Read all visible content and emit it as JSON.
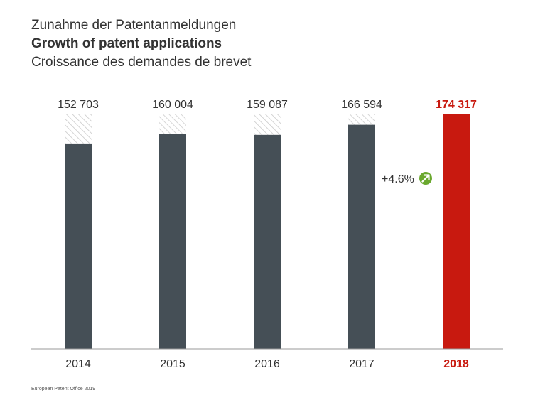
{
  "titles": {
    "de": "Zunahme der Patentanmeldungen",
    "en": "Growth of patent applications",
    "fr": "Croissance des demandes de brevet"
  },
  "source": "European Patent Office 2019",
  "colors": {
    "bar": "#454f56",
    "highlight": "#c8190f",
    "hatch": "#c8c8c8",
    "axis": "#999999",
    "arrow_badge": "#6aa82e"
  },
  "icons": {
    "growth": "arrow-up-right-icon"
  },
  "chart_data": {
    "type": "bar",
    "categories": [
      "2014",
      "2015",
      "2016",
      "2017",
      "2018"
    ],
    "values": [
      152703,
      160004,
      159087,
      166594,
      174317
    ],
    "value_labels": [
      "152 703",
      "160 004",
      "159 087",
      "166 594",
      "174 317"
    ],
    "highlight_category": "2018",
    "reference_value": 174317,
    "annotation": {
      "text": "+4.6%",
      "between": [
        "2017",
        "2018"
      ]
    },
    "ylim": [
      0,
      174317
    ],
    "grid": false
  }
}
